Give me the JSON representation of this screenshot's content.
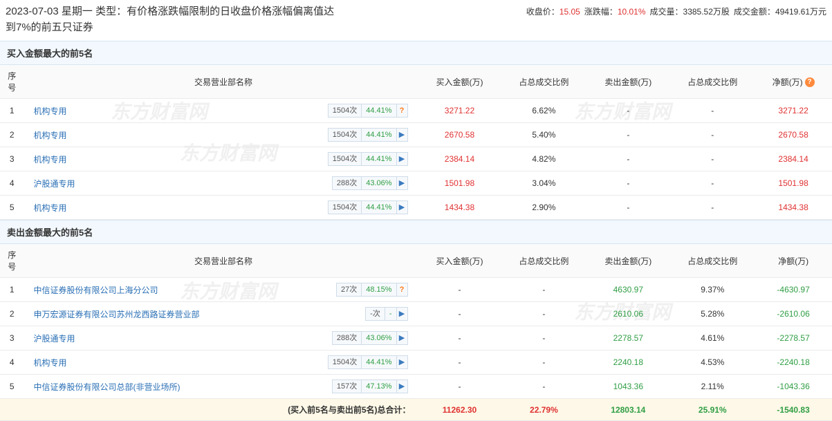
{
  "header": {
    "date": "2023-07-03",
    "weekday": "星期一",
    "type_label": "类型：",
    "type_text": "有价格涨跌幅限制的日收盘价格涨幅偏离值达到7%的前五只证券",
    "metrics": {
      "close_label": "收盘价：",
      "close_value": "15.05",
      "chg_label": "涨跌幅：",
      "chg_value": "10.01%",
      "vol_label": "成交量：",
      "vol_value": "3385.52万股",
      "amt_label": "成交金额：",
      "amt_value": "49419.61万元"
    }
  },
  "columns": {
    "idx": "序号",
    "dept": "交易营业部名称",
    "buy_amt": "买入金额(万)",
    "buy_pct": "占总成交比例",
    "sell_amt": "卖出金额(万)",
    "sell_pct": "占总成交比例",
    "net": "净额(万)"
  },
  "buy_section": {
    "title": "买入金额最大的前5名",
    "rows": [
      {
        "idx": "1",
        "dept": "机构专用",
        "cnt": "1504次",
        "pct": "44.41%",
        "hot": true,
        "buy": "3271.22",
        "buy_pct": "6.62%",
        "sell": "-",
        "sell_pct": "-",
        "net": "3271.22",
        "net_class": "red"
      },
      {
        "idx": "2",
        "dept": "机构专用",
        "cnt": "1504次",
        "pct": "44.41%",
        "hot": false,
        "buy": "2670.58",
        "buy_pct": "5.40%",
        "sell": "-",
        "sell_pct": "-",
        "net": "2670.58",
        "net_class": "red"
      },
      {
        "idx": "3",
        "dept": "机构专用",
        "cnt": "1504次",
        "pct": "44.41%",
        "hot": false,
        "buy": "2384.14",
        "buy_pct": "4.82%",
        "sell": "-",
        "sell_pct": "-",
        "net": "2384.14",
        "net_class": "red"
      },
      {
        "idx": "4",
        "dept": "沪股通专用",
        "cnt": "288次",
        "pct": "43.06%",
        "hot": false,
        "buy": "1501.98",
        "buy_pct": "3.04%",
        "sell": "-",
        "sell_pct": "-",
        "net": "1501.98",
        "net_class": "red"
      },
      {
        "idx": "5",
        "dept": "机构专用",
        "cnt": "1504次",
        "pct": "44.41%",
        "hot": false,
        "buy": "1434.38",
        "buy_pct": "2.90%",
        "sell": "-",
        "sell_pct": "-",
        "net": "1434.38",
        "net_class": "red"
      }
    ]
  },
  "sell_section": {
    "title": "卖出金额最大的前5名",
    "rows": [
      {
        "idx": "1",
        "dept": "中信证券股份有限公司上海分公司",
        "cnt": "27次",
        "pct": "48.15%",
        "hot": true,
        "buy": "-",
        "buy_pct": "-",
        "sell": "4630.97",
        "sell_pct": "9.37%",
        "net": "-4630.97",
        "net_class": "green"
      },
      {
        "idx": "2",
        "dept": "申万宏源证券有限公司苏州龙西路证券营业部",
        "cnt": "-次",
        "pct": "-",
        "hot": false,
        "buy": "-",
        "buy_pct": "-",
        "sell": "2610.06",
        "sell_pct": "5.28%",
        "net": "-2610.06",
        "net_class": "green"
      },
      {
        "idx": "3",
        "dept": "沪股通专用",
        "cnt": "288次",
        "pct": "43.06%",
        "hot": false,
        "buy": "-",
        "buy_pct": "-",
        "sell": "2278.57",
        "sell_pct": "4.61%",
        "net": "-2278.57",
        "net_class": "green"
      },
      {
        "idx": "4",
        "dept": "机构专用",
        "cnt": "1504次",
        "pct": "44.41%",
        "hot": false,
        "buy": "-",
        "buy_pct": "-",
        "sell": "2240.18",
        "sell_pct": "4.53%",
        "net": "-2240.18",
        "net_class": "green"
      },
      {
        "idx": "5",
        "dept": "中信证券股份有限公司总部(非营业场所)",
        "cnt": "157次",
        "pct": "47.13%",
        "hot": false,
        "buy": "-",
        "buy_pct": "-",
        "sell": "1043.36",
        "sell_pct": "2.11%",
        "net": "-1043.36",
        "net_class": "green"
      }
    ]
  },
  "totals": {
    "label": "(买入前5名与卖出前5名)总合计：",
    "buy": "11262.30",
    "buy_pct": "22.79%",
    "sell": "12803.14",
    "sell_pct": "25.91%",
    "net": "-1540.83"
  },
  "watermark": "东方财富网"
}
